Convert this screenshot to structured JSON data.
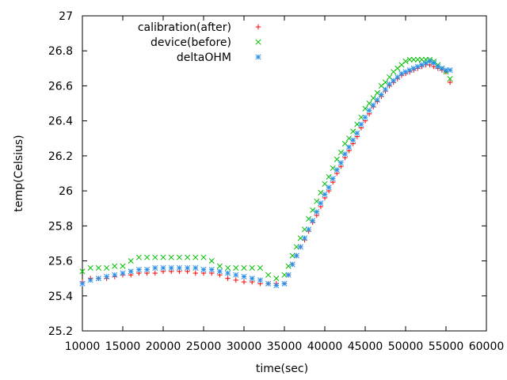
{
  "chart_data": {
    "type": "scatter",
    "title": "",
    "xlabel": "time(sec)",
    "ylabel": "temp(Celsius)",
    "xlim": [
      10000,
      60000
    ],
    "ylim": [
      25.2,
      27
    ],
    "x_ticks": [
      10000,
      15000,
      20000,
      25000,
      30000,
      35000,
      40000,
      45000,
      50000,
      55000,
      60000
    ],
    "y_ticks": [
      25.2,
      25.4,
      25.6,
      25.8,
      26,
      26.2,
      26.4,
      26.6,
      26.8,
      27
    ],
    "x_tick_labels": [
      "10000",
      "15000",
      "20000",
      "25000",
      "30000",
      "35000",
      "40000",
      "45000",
      "50000",
      "55000",
      "60000"
    ],
    "y_tick_labels": [
      "25.2",
      "25.4",
      "25.6",
      "25.8",
      "26",
      "26.2",
      "26.4",
      "26.6",
      "26.8",
      "27"
    ],
    "grid": false,
    "legend_position": "top-left",
    "series": [
      {
        "name": "calibration(after)",
        "marker": "plus",
        "color": "#ff0000",
        "x": [
          10000,
          11000,
          12000,
          13000,
          14000,
          15000,
          16000,
          17000,
          18000,
          19000,
          20000,
          21000,
          22000,
          23000,
          24000,
          25000,
          26000,
          27000,
          28000,
          29000,
          30000,
          31000,
          32000,
          33000,
          34000,
          35000,
          35500,
          36000,
          36500,
          37000,
          37500,
          38000,
          38500,
          39000,
          39500,
          40000,
          40500,
          41000,
          41500,
          42000,
          42500,
          43000,
          43500,
          44000,
          44500,
          45000,
          45500,
          46000,
          46500,
          47000,
          47500,
          48000,
          48500,
          49000,
          49500,
          50000,
          50500,
          51000,
          51500,
          52000,
          52500,
          53000,
          53500,
          54000,
          54500,
          55000,
          55500
        ],
        "y": [
          25.48,
          25.5,
          25.5,
          25.5,
          25.51,
          25.52,
          25.52,
          25.53,
          25.53,
          25.53,
          25.54,
          25.54,
          25.54,
          25.54,
          25.53,
          25.53,
          25.53,
          25.52,
          25.5,
          25.49,
          25.48,
          25.48,
          25.47,
          25.47,
          25.47,
          25.47,
          25.52,
          25.58,
          25.63,
          25.68,
          25.72,
          25.77,
          25.82,
          25.86,
          25.91,
          25.96,
          26.0,
          26.05,
          26.1,
          26.14,
          26.19,
          26.23,
          26.27,
          26.31,
          26.36,
          26.4,
          26.44,
          26.48,
          26.51,
          26.54,
          26.57,
          26.6,
          26.62,
          26.64,
          26.66,
          26.67,
          26.68,
          26.69,
          26.7,
          26.71,
          26.72,
          26.72,
          26.71,
          26.7,
          26.69,
          26.68,
          26.62
        ]
      },
      {
        "name": "device(before)",
        "marker": "cross",
        "color": "#00c000",
        "x": [
          10000,
          11000,
          12000,
          13000,
          14000,
          15000,
          16000,
          17000,
          18000,
          19000,
          20000,
          21000,
          22000,
          23000,
          24000,
          25000,
          26000,
          27000,
          28000,
          29000,
          30000,
          31000,
          32000,
          33000,
          34000,
          35000,
          35500,
          36000,
          36500,
          37000,
          37500,
          38000,
          38500,
          39000,
          39500,
          40000,
          40500,
          41000,
          41500,
          42000,
          42500,
          43000,
          43500,
          44000,
          44500,
          45000,
          45500,
          46000,
          46500,
          47000,
          47500,
          48000,
          48500,
          49000,
          49500,
          50000,
          50500,
          51000,
          51500,
          52000,
          52500,
          53000,
          53500,
          54000,
          54500,
          55000,
          55500
        ],
        "y": [
          25.54,
          25.56,
          25.56,
          25.56,
          25.57,
          25.57,
          25.6,
          25.62,
          25.62,
          25.62,
          25.62,
          25.62,
          25.62,
          25.62,
          25.62,
          25.62,
          25.6,
          25.57,
          25.56,
          25.56,
          25.56,
          25.56,
          25.56,
          25.52,
          25.5,
          25.52,
          25.57,
          25.63,
          25.68,
          25.73,
          25.78,
          25.84,
          25.89,
          25.94,
          25.99,
          26.04,
          26.08,
          26.13,
          26.18,
          26.22,
          26.27,
          26.3,
          26.34,
          26.38,
          26.42,
          26.47,
          26.5,
          26.53,
          26.56,
          26.6,
          26.62,
          26.65,
          26.68,
          26.7,
          26.72,
          26.74,
          26.75,
          26.75,
          26.75,
          26.75,
          26.75,
          26.75,
          26.74,
          26.72,
          26.7,
          26.68,
          26.64
        ]
      },
      {
        "name": "deltaOHM",
        "marker": "star",
        "color": "#2a8fe8",
        "x": [
          10000,
          11000,
          12000,
          13000,
          14000,
          15000,
          16000,
          17000,
          18000,
          19000,
          20000,
          21000,
          22000,
          23000,
          24000,
          25000,
          26000,
          27000,
          28000,
          29000,
          30000,
          31000,
          32000,
          33000,
          34000,
          35000,
          35500,
          36000,
          36500,
          37000,
          37500,
          38000,
          38500,
          39000,
          39500,
          40000,
          40500,
          41000,
          41500,
          42000,
          42500,
          43000,
          43500,
          44000,
          44500,
          45000,
          45500,
          46000,
          46500,
          47000,
          47500,
          48000,
          48500,
          49000,
          49500,
          50000,
          50500,
          51000,
          51500,
          52000,
          52500,
          53000,
          53500,
          54000,
          54500,
          55000,
          55500
        ],
        "y": [
          25.47,
          25.49,
          25.5,
          25.51,
          25.52,
          25.53,
          25.54,
          25.55,
          25.55,
          25.56,
          25.56,
          25.56,
          25.56,
          25.56,
          25.56,
          25.55,
          25.55,
          25.54,
          25.53,
          25.52,
          25.51,
          25.5,
          25.49,
          25.47,
          25.46,
          25.47,
          25.52,
          25.58,
          25.63,
          25.68,
          25.73,
          25.78,
          25.83,
          25.88,
          25.93,
          25.98,
          26.02,
          26.07,
          26.12,
          26.16,
          26.21,
          26.25,
          26.29,
          26.33,
          26.38,
          26.42,
          26.46,
          26.49,
          26.52,
          26.55,
          26.58,
          26.61,
          26.63,
          26.65,
          26.67,
          26.68,
          26.69,
          26.7,
          26.71,
          26.72,
          26.73,
          26.74,
          26.73,
          26.71,
          26.7,
          26.69,
          26.69
        ]
      }
    ]
  }
}
